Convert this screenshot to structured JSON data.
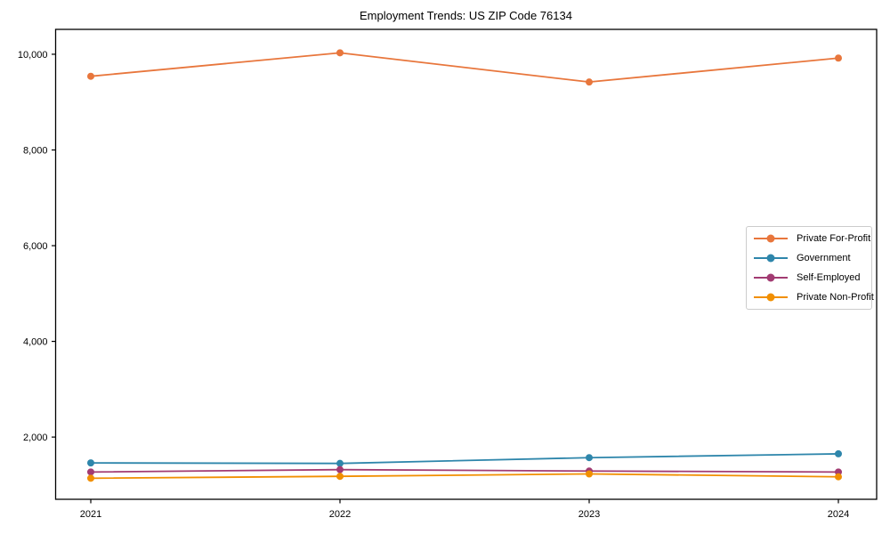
{
  "figure": {
    "background": "#ffffff"
  },
  "chart_data": {
    "type": "line",
    "title": "Employment Trends: US ZIP Code 76134",
    "xlabel": "",
    "ylabel": "",
    "x_categories": [
      "2021",
      "2022",
      "2023",
      "2024"
    ],
    "series": [
      {
        "name": "Private For-Profit",
        "color": "#E8763C",
        "values": [
          9540,
          10030,
          9420,
          9920
        ]
      },
      {
        "name": "Government",
        "color": "#2E86AB",
        "values": [
          1460,
          1450,
          1570,
          1650
        ]
      },
      {
        "name": "Self-Employed",
        "color": "#A23B72",
        "values": [
          1270,
          1320,
          1290,
          1270
        ]
      },
      {
        "name": "Private Non-Profit",
        "color": "#F18F01",
        "values": [
          1140,
          1180,
          1230,
          1170
        ]
      }
    ],
    "ylim": [
      700,
      10520
    ],
    "yticks": [
      2000,
      4000,
      6000,
      8000,
      10000
    ],
    "ytick_labels": [
      "2,000",
      "4,000",
      "6,000",
      "8,000",
      "10,000"
    ],
    "grid": false,
    "legend_position": "center right",
    "marker": "circle",
    "axis_color": "#000000"
  }
}
